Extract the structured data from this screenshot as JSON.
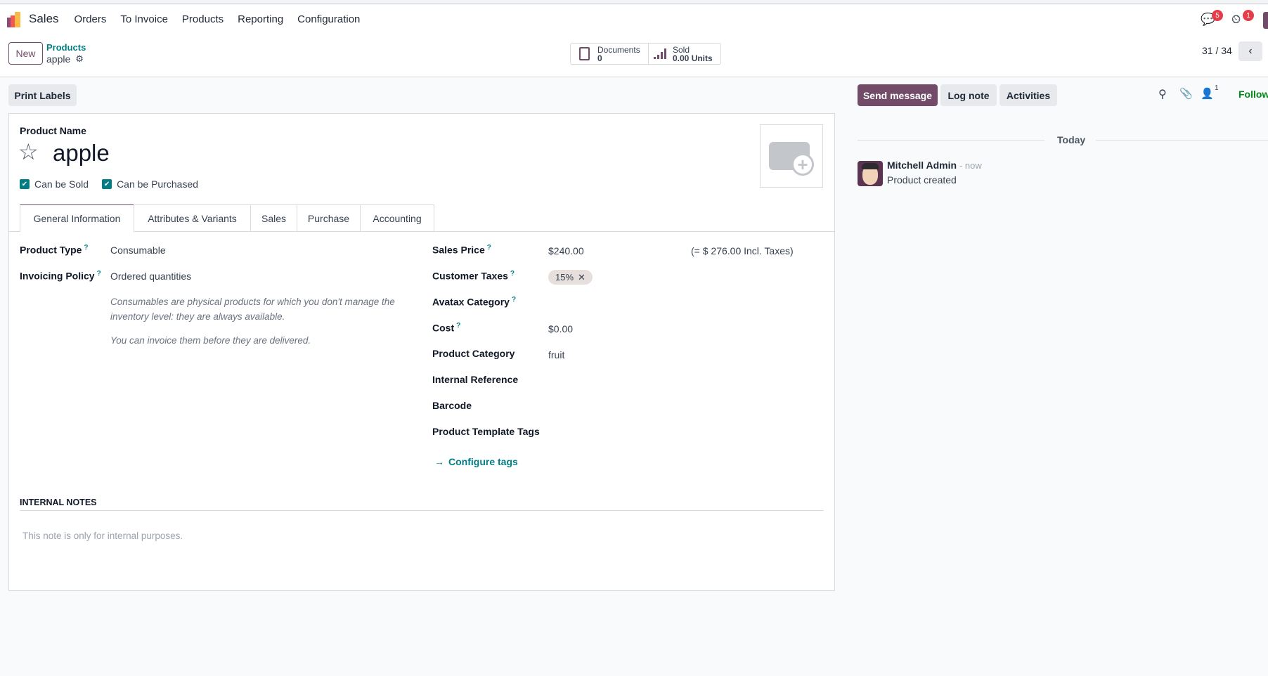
{
  "navbar": {
    "app_name": "Sales",
    "menu": [
      "Orders",
      "To Invoice",
      "Products",
      "Reporting",
      "Configuration"
    ],
    "messages_count": "5",
    "activities_count": "1"
  },
  "control_panel": {
    "new_label": "New",
    "breadcrumb_parent": "Products",
    "breadcrumb_current": "apple",
    "documents_label": "Documents",
    "documents_value": "0",
    "sold_label": "Sold",
    "sold_value": "0.00 Units",
    "pager": "31 / 34"
  },
  "actions": {
    "print_labels": "Print Labels"
  },
  "form": {
    "product_name_label": "Product Name",
    "product_name": "apple",
    "can_be_sold": "Can be Sold",
    "can_be_purchased": "Can be Purchased",
    "tabs": [
      "General Information",
      "Attributes & Variants",
      "Sales",
      "Purchase",
      "Accounting"
    ],
    "left_fields": [
      {
        "label": "Product Type",
        "value": "Consumable"
      },
      {
        "label": "Invoicing Policy",
        "value": "Ordered quantities"
      }
    ],
    "help_1": "Consumables are physical products for which you don't manage the inventory level: they are always available.",
    "help_2": "You can invoice them before they are delivered.",
    "right_fields": [
      {
        "label": "Sales Price",
        "value": "$240.00"
      },
      {
        "label": "Customer Taxes",
        "value": "15%"
      },
      {
        "label": "Avatax Category",
        "value": ""
      },
      {
        "label": "Cost",
        "value": "$0.00"
      },
      {
        "label": "Product Category",
        "value": "fruit"
      },
      {
        "label": "Internal Reference",
        "value": ""
      },
      {
        "label": "Barcode",
        "value": ""
      },
      {
        "label": "Product Template Tags",
        "value": ""
      }
    ],
    "incl_taxes": "(= $ 276.00 Incl. Taxes)",
    "configure_tags": "Configure tags",
    "internal_notes_label": "INTERNAL NOTES",
    "internal_notes_placeholder": "This note is only for internal purposes."
  },
  "chatter": {
    "send_message": "Send message",
    "log_note": "Log note",
    "activities": "Activities",
    "followers_count": "1",
    "follow": "Follow",
    "date_separator": "Today",
    "messages": [
      {
        "author": "Mitchell Admin",
        "time": "- now",
        "body": "Product created"
      }
    ]
  },
  "colors": {
    "brand": "#714b67",
    "accent": "#017e84",
    "follow": "#008818",
    "badge": "#e43d4a"
  }
}
